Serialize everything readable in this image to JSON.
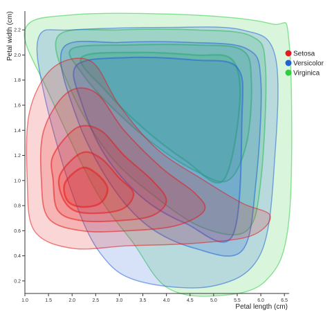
{
  "chart_data": {
    "type": "contour-density",
    "title": "",
    "xlabel": "Petal length (cm)",
    "ylabel": "Petal width (cm)",
    "xlim": [
      1.0,
      6.6
    ],
    "ylim": [
      0.1,
      2.35
    ],
    "x_ticks": [
      "1.0",
      "1.5",
      "2.0",
      "2.5",
      "3.0",
      "3.5",
      "4.0",
      "4.5",
      "5.0",
      "5.5",
      "6.0",
      "6.5"
    ],
    "y_ticks": [
      "0.2",
      "0.4",
      "0.6",
      "0.8",
      "1.0",
      "1.2",
      "1.4",
      "1.6",
      "1.8",
      "2.0",
      "2.2"
    ],
    "legend_position": "right",
    "series": [
      {
        "name": "Setosa",
        "color": "#e41a1c",
        "contours": [
          [
            [
              1.1,
              1.55
            ],
            [
              1.6,
              1.9
            ],
            [
              2.4,
              1.95
            ],
            [
              3.0,
              1.6
            ],
            [
              3.8,
              1.25
            ],
            [
              4.8,
              1.0
            ],
            [
              5.6,
              0.82
            ],
            [
              6.2,
              0.72
            ],
            [
              5.8,
              0.56
            ],
            [
              4.6,
              0.5
            ],
            [
              3.2,
              0.48
            ],
            [
              2.0,
              0.46
            ],
            [
              1.2,
              0.6
            ],
            [
              1.05,
              1.0
            ]
          ],
          [
            [
              1.4,
              1.4
            ],
            [
              1.9,
              1.7
            ],
            [
              2.5,
              1.7
            ],
            [
              3.1,
              1.4
            ],
            [
              3.9,
              1.1
            ],
            [
              4.6,
              0.9
            ],
            [
              4.8,
              0.76
            ],
            [
              4.2,
              0.64
            ],
            [
              3.2,
              0.6
            ],
            [
              2.2,
              0.6
            ],
            [
              1.5,
              0.7
            ],
            [
              1.35,
              1.0
            ]
          ],
          [
            [
              1.6,
              1.2
            ],
            [
              2.1,
              1.42
            ],
            [
              2.6,
              1.4
            ],
            [
              3.1,
              1.2
            ],
            [
              3.7,
              1.0
            ],
            [
              4.0,
              0.84
            ],
            [
              3.7,
              0.72
            ],
            [
              3.0,
              0.68
            ],
            [
              2.2,
              0.68
            ],
            [
              1.7,
              0.76
            ],
            [
              1.6,
              1.0
            ]
          ],
          [
            [
              1.75,
              1.05
            ],
            [
              2.2,
              1.22
            ],
            [
              2.6,
              1.18
            ],
            [
              3.0,
              1.02
            ],
            [
              3.3,
              0.9
            ],
            [
              3.1,
              0.78
            ],
            [
              2.6,
              0.74
            ],
            [
              2.05,
              0.76
            ],
            [
              1.78,
              0.88
            ]
          ],
          [
            [
              1.85,
              0.98
            ],
            [
              2.2,
              1.1
            ],
            [
              2.5,
              1.06
            ],
            [
              2.75,
              0.94
            ],
            [
              2.6,
              0.82
            ],
            [
              2.2,
              0.79
            ],
            [
              1.9,
              0.84
            ]
          ]
        ]
      },
      {
        "name": "Versicolor",
        "color": "#2061d6",
        "contours": [
          [
            [
              1.3,
              2.15
            ],
            [
              2.0,
              2.2
            ],
            [
              4.0,
              2.22
            ],
            [
              5.6,
              2.2
            ],
            [
              6.3,
              2.0
            ],
            [
              6.3,
              1.2
            ],
            [
              6.0,
              0.42
            ],
            [
              5.0,
              0.16
            ],
            [
              3.4,
              0.2
            ],
            [
              2.6,
              0.42
            ],
            [
              2.0,
              0.9
            ],
            [
              1.4,
              1.7
            ]
          ],
          [
            [
              1.8,
              2.05
            ],
            [
              3.0,
              2.1
            ],
            [
              4.5,
              2.1
            ],
            [
              5.7,
              2.05
            ],
            [
              6.0,
              1.8
            ],
            [
              5.9,
              1.0
            ],
            [
              5.6,
              0.44
            ],
            [
              4.6,
              0.46
            ],
            [
              3.6,
              0.64
            ],
            [
              2.8,
              0.98
            ],
            [
              2.1,
              1.5
            ]
          ],
          [
            [
              2.1,
              1.92
            ],
            [
              3.2,
              1.98
            ],
            [
              4.6,
              1.96
            ],
            [
              5.5,
              1.9
            ],
            [
              5.6,
              1.5
            ],
            [
              5.4,
              0.56
            ],
            [
              4.4,
              0.66
            ],
            [
              3.5,
              0.86
            ],
            [
              2.7,
              1.2
            ],
            [
              2.2,
              1.62
            ]
          ]
        ]
      },
      {
        "name": "Virginica",
        "color": "#2ecc40",
        "contours": [
          [
            [
              1.0,
              2.2
            ],
            [
              2.0,
              2.32
            ],
            [
              4.5,
              2.32
            ],
            [
              6.2,
              2.25
            ],
            [
              6.6,
              2.1
            ],
            [
              6.6,
              0.7
            ],
            [
              6.1,
              0.2
            ],
            [
              5.0,
              0.08
            ],
            [
              4.0,
              0.15
            ],
            [
              3.3,
              0.5
            ],
            [
              2.5,
              0.92
            ],
            [
              1.5,
              1.7
            ]
          ],
          [
            [
              1.7,
              2.15
            ],
            [
              3.0,
              2.2
            ],
            [
              4.6,
              2.2
            ],
            [
              5.8,
              2.15
            ],
            [
              6.1,
              1.9
            ],
            [
              6.0,
              1.0
            ],
            [
              5.7,
              0.6
            ],
            [
              4.8,
              0.62
            ],
            [
              3.8,
              0.86
            ],
            [
              2.8,
              1.2
            ],
            [
              2.0,
              1.7
            ]
          ],
          [
            [
              2.0,
              2.05
            ],
            [
              3.2,
              2.08
            ],
            [
              4.6,
              2.08
            ],
            [
              5.6,
              2.04
            ],
            [
              5.8,
              1.8
            ],
            [
              5.7,
              1.3
            ],
            [
              5.3,
              1.0
            ],
            [
              4.6,
              1.08
            ],
            [
              3.7,
              1.3
            ],
            [
              2.8,
              1.6
            ],
            [
              2.2,
              1.86
            ]
          ],
          [
            [
              2.2,
              1.98
            ],
            [
              3.4,
              2.02
            ],
            [
              4.6,
              2.0
            ],
            [
              5.4,
              1.96
            ],
            [
              5.55,
              1.6
            ],
            [
              5.2,
              1.0
            ],
            [
              4.4,
              1.16
            ],
            [
              3.5,
              1.42
            ],
            [
              2.7,
              1.72
            ]
          ]
        ]
      }
    ]
  }
}
